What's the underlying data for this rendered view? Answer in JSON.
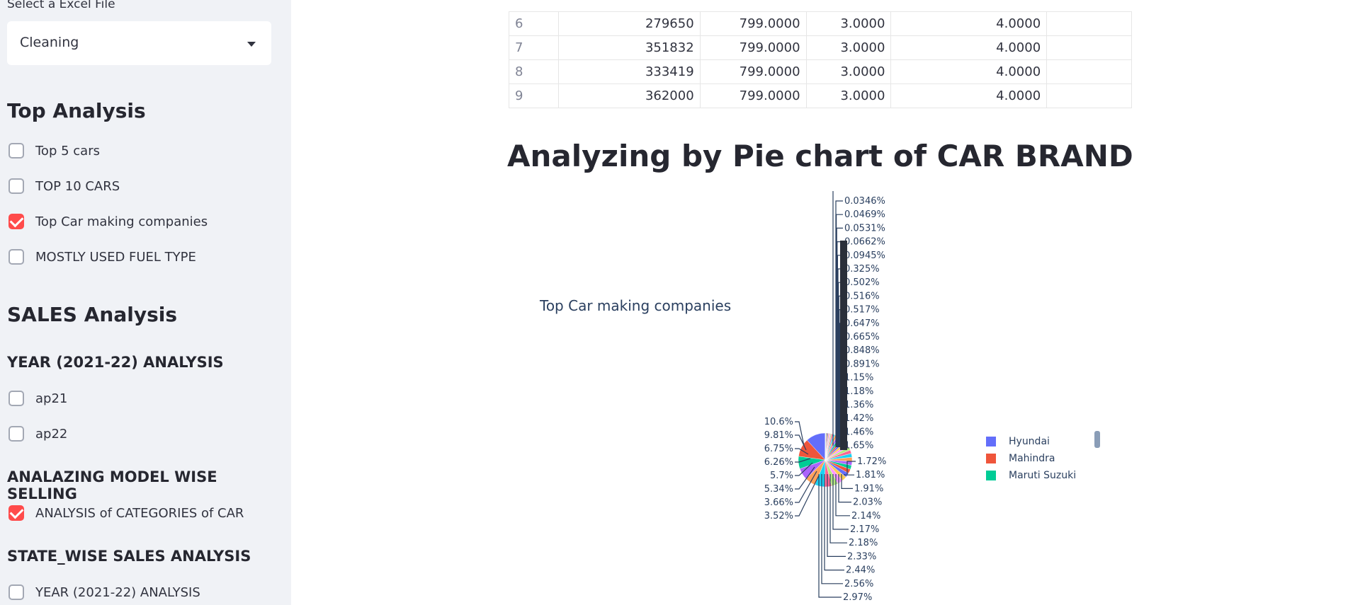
{
  "sidebar": {
    "select_label": "Select a Excel File",
    "select_value": "Cleaning",
    "top_analysis_heading": "Top Analysis",
    "top_options": [
      {
        "label": "Top 5 cars",
        "checked": false
      },
      {
        "label": "TOP 10 CARS",
        "checked": false
      },
      {
        "label": "Top Car making companies",
        "checked": true
      },
      {
        "label": "MOSTLY USED FUEL TYPE",
        "checked": false
      }
    ],
    "sales_heading": "SALES Analysis",
    "year_heading": "YEAR (2021-22) ANALYSIS",
    "year_options": [
      {
        "label": "ap21",
        "checked": false
      },
      {
        "label": "ap22",
        "checked": false
      }
    ],
    "model_heading": "ANALAZING MODEL WISE SELLING",
    "model_options": [
      {
        "label": "ANALYSIS of CATEGORIES of CAR",
        "checked": true
      }
    ],
    "state_heading": "STATE_WISE SALES ANALYSIS",
    "state_options": [
      {
        "label": "YEAR (2021-22) ANALYSIS",
        "checked": false
      }
    ]
  },
  "table": {
    "rows": [
      {
        "idx": "6",
        "c1": "279650",
        "c2": "799.0000",
        "c3": "3.0000",
        "c4": "4.0000"
      },
      {
        "idx": "7",
        "c1": "351832",
        "c2": "799.0000",
        "c3": "3.0000",
        "c4": "4.0000"
      },
      {
        "idx": "8",
        "c1": "333419",
        "c2": "799.0000",
        "c3": "3.0000",
        "c4": "4.0000"
      },
      {
        "idx": "9",
        "c1": "362000",
        "c2": "799.0000",
        "c3": "3.0000",
        "c4": "4.0000"
      }
    ]
  },
  "main": {
    "title": "Analyzing by Pie chart of CAR BRAND"
  },
  "chart_data": {
    "type": "pie",
    "title": "Top Car making companies",
    "legend": [
      {
        "name": "Hyundai",
        "color": "#636efa"
      },
      {
        "name": "Mahindra",
        "color": "#ef553b"
      },
      {
        "name": "Maruti Suzuki",
        "color": "#00cc96"
      }
    ],
    "slice_labels_left": [
      "10.6%",
      "9.81%",
      "6.75%",
      "6.26%",
      "5.7%",
      "5.34%",
      "3.66%",
      "3.52%"
    ],
    "slice_labels_right_bottom": [
      "1.72%",
      "1.81%",
      "1.91%",
      "2.03%",
      "2.14%",
      "2.17%",
      "2.18%",
      "2.33%",
      "2.44%",
      "2.56%",
      "2.97%"
    ],
    "slice_labels_right_top": [
      "0.0346%",
      "0.0469%",
      "0.0531%",
      "0.0662%",
      "0.0945%",
      "0.325%",
      "0.502%",
      "0.516%",
      "0.517%",
      "0.647%",
      "0.665%",
      "0.848%",
      "0.891%",
      "1.15%",
      "1.18%",
      "1.36%",
      "1.42%",
      "1.46%",
      "1.65%"
    ],
    "values": [
      10.6,
      9.81,
      6.75,
      6.26,
      5.7,
      5.34,
      3.66,
      3.52,
      2.97,
      2.56,
      2.44,
      2.33,
      2.18,
      2.17,
      2.14,
      2.03,
      1.91,
      1.81,
      1.72,
      1.65,
      1.46,
      1.42,
      1.36,
      1.18,
      1.15,
      0.891,
      0.848,
      0.665,
      0.647,
      0.517,
      0.516,
      0.502,
      0.325,
      0.0945,
      0.0662,
      0.0531,
      0.0469,
      0.0346
    ],
    "colors": [
      "#636efa",
      "#ef553b",
      "#00cc96",
      "#ab63fa",
      "#ffa15a",
      "#19d3f3",
      "#ff6692",
      "#b6e880",
      "#ff97ff",
      "#fecb52"
    ]
  }
}
